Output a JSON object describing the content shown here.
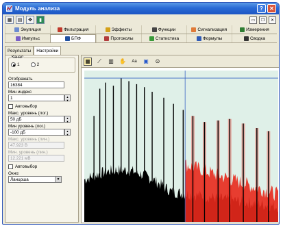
{
  "window": {
    "title": "Модуль анализа",
    "help_btn": "?",
    "close_btn": "✕"
  },
  "modules_tabs": {
    "row1": [
      "Энуляция",
      "Фильтрация",
      "Эффекты",
      "Функции",
      "Сигнализация",
      "Измерения"
    ],
    "row2": [
      "Импульс",
      "БПФ",
      "Протоколы",
      "Статистика",
      "Формулы",
      "Сводка"
    ],
    "icon_colors": [
      "#6b8bd1",
      "#c0392b",
      "#d4a017",
      "#444444",
      "#e07b39",
      "#2e7d32",
      "#7a5fc8",
      "#1f4fa0",
      "#b23c3c",
      "#3a9a3a",
      "#2f5bb7",
      "#333333"
    ],
    "active": "БПФ"
  },
  "left_panel": {
    "subtabs": [
      "Результаты",
      "Настройки"
    ],
    "active_subtab": "Настройки",
    "channel_label": "Канал",
    "channel_options": [
      "1",
      "2"
    ],
    "channel_selected": "1",
    "display_label": "Отображать",
    "display_value": "16384",
    "min_index_label": "Мин индекс",
    "min_index_value": "1",
    "autoselect1": "Автовыбор",
    "max_level_log_label": "Макс. уровень (лог.)",
    "max_level_log_value": "50 дБ",
    "min_level_log_label": "Мин уровень (лог.)",
    "min_level_log_value": "-100 дБ",
    "max_level_lin_label": "Макс. уровень (лин.)",
    "max_level_lin_value": "47.923 В",
    "min_level_lin_label": "Мин. уровень (лин.)",
    "min_level_lin_value": "12.221 мВ",
    "autoselect2": "Автовыбор",
    "window_label": "Окно:",
    "window_value": "Ланцоша"
  },
  "chart_toolbar": {
    "icons": [
      "grid-icon",
      "line-chart-icon",
      "bar-chart-icon",
      "cursor-icon",
      "text-icon",
      "window-icon",
      "zoom-icon"
    ]
  },
  "chart_data": {
    "type": "bar",
    "x": [
      0.05,
      0.08,
      0.11,
      0.15,
      0.19,
      0.23,
      0.27,
      0.31,
      0.35,
      0.41,
      0.46,
      0.51,
      0.56,
      0.62,
      0.69,
      0.75,
      0.82,
      0.89,
      0.95
    ],
    "values": [
      -30,
      -12,
      -8,
      -10,
      -5,
      -7,
      -9,
      -11,
      -14,
      -18,
      -22,
      -26,
      -30,
      -34,
      -33,
      -32,
      -35,
      -38,
      -40
    ],
    "noise_floor_left": -72,
    "noise_floor_right": -90,
    "highlight_from_x": 0.52,
    "series_colors": {
      "signal": "#000000",
      "overlay": "#e8291c",
      "background": "#dff0e8"
    },
    "ylim": [
      -100,
      0
    ],
    "xlim": [
      0,
      1
    ],
    "cursor_x": 0.52,
    "cursor_y_level": -5,
    "grid": false
  }
}
